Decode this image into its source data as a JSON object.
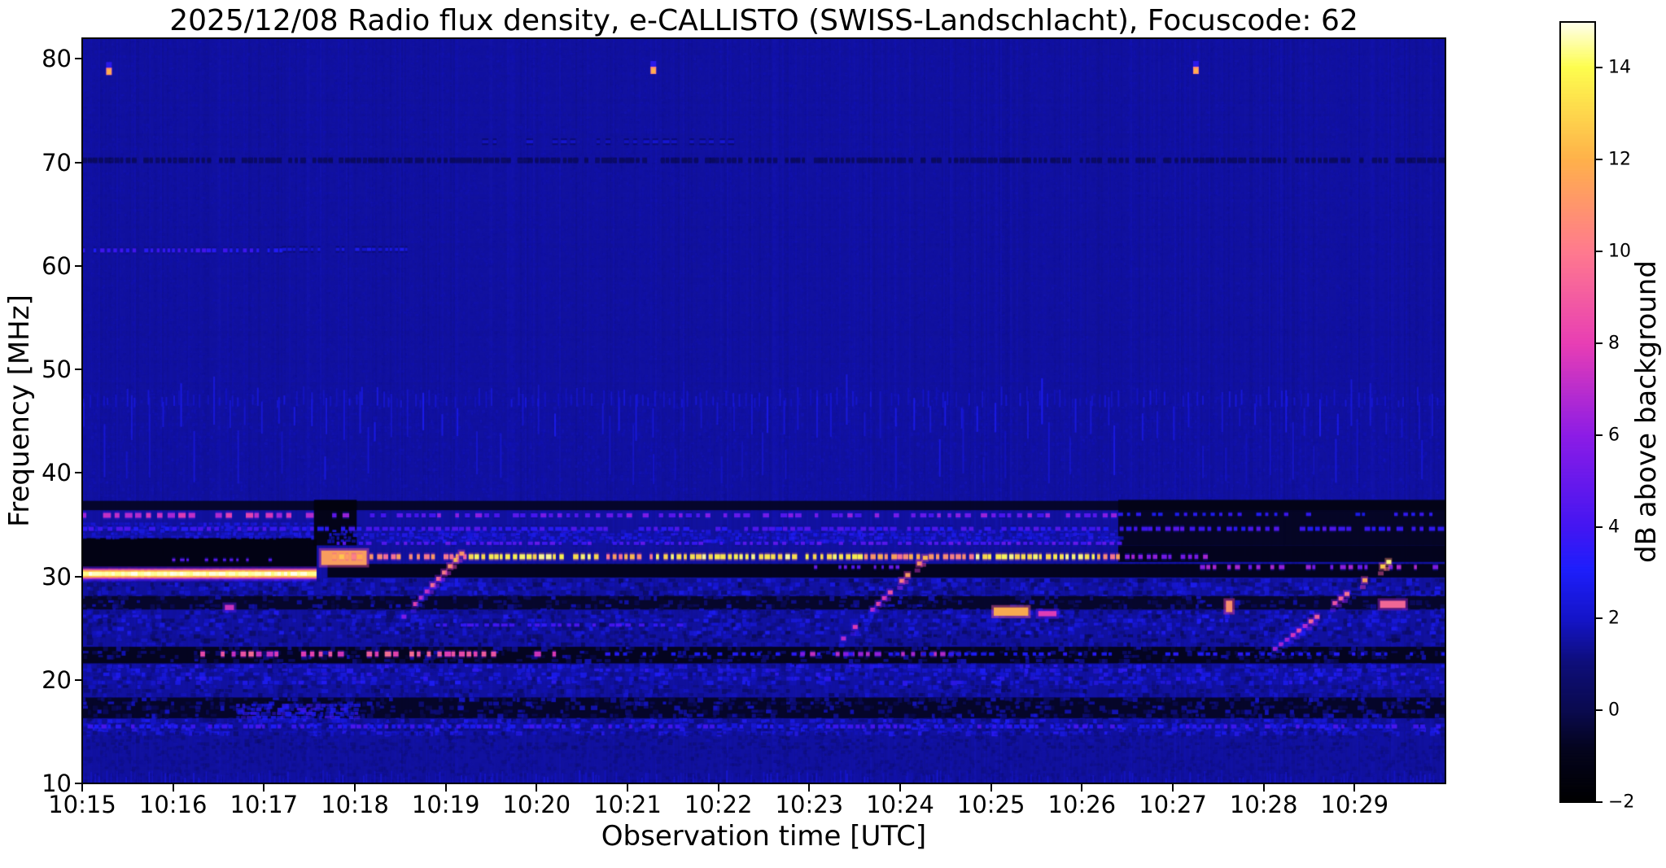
{
  "page": {
    "background": "#ffffff"
  },
  "chart_data": {
    "type": "heatmap",
    "title": "2025/12/08  Radio flux density, e-CALLISTO (SWISS-Landschlacht), Focuscode: 62",
    "date": "2025/12/08",
    "station": "SWISS-Landschlacht",
    "focuscode": "62",
    "xlabel": "Observation time [UTC]",
    "ylabel": "Frequency [MHz]",
    "x_tick_labels": [
      "10:15",
      "10:16",
      "10:17",
      "10:18",
      "10:19",
      "10:20",
      "10:21",
      "10:22",
      "10:23",
      "10:24",
      "10:25",
      "10:26",
      "10:27",
      "10:28",
      "10:29"
    ],
    "x_range": [
      "10:15",
      "10:30"
    ],
    "x_span_minutes": 15,
    "y_ticks": [
      10,
      20,
      30,
      40,
      50,
      60,
      70,
      80
    ],
    "ylim": [
      10,
      82
    ],
    "grid": false,
    "colorbar": {
      "label": "dB above background",
      "position": "right",
      "range": [
        -2,
        15
      ],
      "tick_values": [
        14,
        12,
        10,
        8,
        6,
        4,
        2,
        0,
        -2
      ],
      "tick_labels": [
        "14",
        "12",
        "10",
        "8",
        "6",
        "4",
        "2",
        "0",
        "−2"
      ]
    },
    "colormap_stops": [
      [
        0.0,
        "#000000"
      ],
      [
        0.07,
        "#04041e"
      ],
      [
        0.118,
        "#0a0a4e"
      ],
      [
        0.18,
        "#0e0e7a"
      ],
      [
        0.235,
        "#1414c8"
      ],
      [
        0.3,
        "#1e1efc"
      ],
      [
        0.353,
        "#4316f2"
      ],
      [
        0.47,
        "#8c1ce6"
      ],
      [
        0.588,
        "#e83eb4"
      ],
      [
        0.706,
        "#ff7a8e"
      ],
      [
        0.824,
        "#ffb14a"
      ],
      [
        0.941,
        "#fdfd4e"
      ],
      [
        1.0,
        "#ffffee"
      ]
    ],
    "background_db": 1.5,
    "features": [
      {
        "type": "speckle",
        "f0": 48,
        "f1": 82,
        "t0": 0,
        "t1": 15,
        "base": 1.5,
        "amp": 0.9,
        "density": 0.45,
        "cw": 3,
        "ch": 3,
        "alpha": 0.22
      },
      {
        "type": "speckle",
        "f0": 37.4,
        "f1": 48,
        "t0": 0,
        "t1": 15,
        "base": 1.6,
        "amp": 1.0,
        "density": 0.5,
        "cw": 3,
        "ch": 4,
        "alpha": 0.28
      },
      {
        "type": "picket",
        "f0": 43,
        "f1": 48.3,
        "t0": 0,
        "t1": 15,
        "spacing": 20,
        "len": 3.5,
        "db": 2.7,
        "density": 0.85,
        "w": 2
      },
      {
        "type": "picket",
        "f0": 38.5,
        "f1": 44.5,
        "t0": 0,
        "t1": 15,
        "spacing": 27,
        "len": 4.5,
        "db": 2.3,
        "density": 0.55,
        "w": 2
      },
      {
        "type": "picket",
        "f0": 46.3,
        "f1": 47.9,
        "t0": 0,
        "t1": 15,
        "spacing": 8,
        "len": 1.3,
        "db": 2.3,
        "density": 0.8,
        "w": 2
      },
      {
        "type": "dashline",
        "f": 70.2,
        "t0": 0,
        "t1": 15,
        "db": 0.5,
        "h": 3,
        "seg": 5,
        "gap": 2,
        "density": 0.9,
        "jitter": 0.4
      },
      {
        "type": "dashline",
        "f": 61.5,
        "t0": 0,
        "t1": 2.2,
        "db": 3.6,
        "h": 5,
        "seg": 4,
        "gap": 3,
        "density": 0.9,
        "jitter": 1
      },
      {
        "type": "dashline",
        "f": 61.6,
        "t0": 2.2,
        "t1": 3.6,
        "db": 2.5,
        "h": 4,
        "seg": 4,
        "gap": 3,
        "density": 0.8,
        "jitter": 0.8
      },
      {
        "type": "dashline",
        "f": 72.0,
        "t0": 4.4,
        "t1": 7.3,
        "db": 2.1,
        "h": 4,
        "seg": 6,
        "gap": 5,
        "density": 0.5,
        "jitter": 0.5
      },
      {
        "type": "speckle",
        "f0": 28.2,
        "f1": 29.8,
        "t0": 0,
        "t1": 15,
        "base": 0.9,
        "amp": 3.0,
        "density": 0.72,
        "cw": 6,
        "ch": 5,
        "alpha": 0.9
      },
      {
        "type": "darkband",
        "f0": 26.8,
        "f1": 28.1,
        "t0": 0,
        "t1": 15,
        "db": -0.9,
        "alpha": 0.88
      },
      {
        "type": "speckle",
        "f0": 26.8,
        "f1": 28.1,
        "t0": 0,
        "t1": 15,
        "base": 0.8,
        "amp": 2.2,
        "density": 0.3,
        "cw": 6,
        "ch": 5,
        "alpha": 0.85
      },
      {
        "type": "speckle",
        "f0": 24.5,
        "f1": 26.7,
        "t0": 0,
        "t1": 15,
        "base": 1.0,
        "amp": 3.2,
        "density": 0.68,
        "cw": 6,
        "ch": 5,
        "alpha": 0.9
      },
      {
        "type": "speckle",
        "f0": 23.3,
        "f1": 24.4,
        "t0": 0,
        "t1": 15,
        "base": 0.6,
        "amp": 2.6,
        "density": 0.55,
        "cw": 6,
        "ch": 5,
        "alpha": 0.85
      },
      {
        "type": "darkband",
        "f0": 21.6,
        "f1": 23.2,
        "t0": 0,
        "t1": 15,
        "db": -1.3,
        "alpha": 0.9
      },
      {
        "type": "speckle",
        "f0": 21.6,
        "f1": 23.2,
        "t0": 0,
        "t1": 15,
        "base": 0.6,
        "amp": 2.4,
        "density": 0.3,
        "cw": 6,
        "ch": 5,
        "alpha": 0.85
      },
      {
        "type": "speckle",
        "f0": 19.6,
        "f1": 21.5,
        "t0": 0,
        "t1": 15,
        "base": 1.5,
        "amp": 3.0,
        "density": 0.8,
        "cw": 6,
        "ch": 5,
        "alpha": 0.9
      },
      {
        "type": "speckle",
        "f0": 18.4,
        "f1": 19.5,
        "t0": 0,
        "t1": 15,
        "base": 0.8,
        "amp": 2.5,
        "density": 0.6,
        "cw": 6,
        "ch": 5,
        "alpha": 0.85
      },
      {
        "type": "darkband",
        "f0": 16.3,
        "f1": 18.3,
        "t0": 0,
        "t1": 15,
        "db": -1.0,
        "alpha": 0.88
      },
      {
        "type": "speckle",
        "f0": 16.3,
        "f1": 18.3,
        "t0": 0,
        "t1": 15,
        "base": 0.7,
        "amp": 2.8,
        "density": 0.4,
        "cw": 6,
        "ch": 5,
        "alpha": 0.85
      },
      {
        "type": "speckle",
        "f0": 16.4,
        "f1": 17.7,
        "t0": 1.7,
        "t1": 3.0,
        "base": 2.6,
        "amp": 2.0,
        "density": 0.85,
        "cw": 6,
        "ch": 5,
        "alpha": 0.9
      },
      {
        "type": "speckle",
        "f0": 15.0,
        "f1": 16.2,
        "t0": 0,
        "t1": 15,
        "base": 1.5,
        "amp": 2.8,
        "density": 0.8,
        "cw": 6,
        "ch": 5,
        "alpha": 0.9
      },
      {
        "type": "speckle",
        "f0": 13.6,
        "f1": 14.9,
        "t0": 0,
        "t1": 15,
        "base": 0.7,
        "amp": 1.6,
        "density": 0.5,
        "cw": 5,
        "ch": 4,
        "alpha": 0.6
      },
      {
        "type": "speckle",
        "f0": 10.0,
        "f1": 13.5,
        "t0": 0,
        "t1": 15,
        "base": 0.8,
        "amp": 1.1,
        "density": 0.45,
        "cw": 4,
        "ch": 4,
        "alpha": 0.45
      },
      {
        "type": "picket",
        "f0": 10.0,
        "f1": 10.9,
        "t0": 0,
        "t1": 15,
        "spacing": 5,
        "len": 0.9,
        "db": 1.9,
        "density": 0.85,
        "w": 2
      },
      {
        "type": "dashline",
        "f": 15.5,
        "t0": 0,
        "t1": 15,
        "db": 3.5,
        "h": 5,
        "seg": 5,
        "gap": 4,
        "density": 0.8,
        "jitter": 1.6
      },
      {
        "type": "dashline",
        "f": 25.3,
        "t0": 3.8,
        "t1": 6.7,
        "db": 4.0,
        "h": 4,
        "seg": 6,
        "gap": 4,
        "density": 0.7,
        "jitter": 1
      },
      {
        "type": "dashline",
        "f": 22.5,
        "t0": 1.3,
        "t1": 5.3,
        "db": 8.5,
        "h": 6,
        "seg": 6,
        "gap": 5,
        "density": 0.8,
        "jitter": 2.5
      },
      {
        "type": "dashline",
        "f": 22.5,
        "t0": 7.9,
        "t1": 9.7,
        "db": 6.5,
        "h": 5,
        "seg": 6,
        "gap": 5,
        "density": 0.7,
        "jitter": 2
      },
      {
        "type": "dashline",
        "f": 22.5,
        "t0": 5.3,
        "t1": 15,
        "db": 3.0,
        "h": 4,
        "seg": 5,
        "gap": 5,
        "density": 0.5,
        "jitter": 1
      },
      {
        "type": "darkband",
        "f0": 36.4,
        "f1": 37.3,
        "t0": 0,
        "t1": 15,
        "db": -1.1,
        "alpha": 0.85
      },
      {
        "type": "darkband",
        "f0": 30.7,
        "f1": 33.7,
        "t0": 0,
        "t1": 2.58,
        "db": -1.6,
        "alpha": 0.93
      },
      {
        "type": "speckle",
        "f0": 33.8,
        "f1": 35.2,
        "t0": 0,
        "t1": 2.55,
        "base": 2.2,
        "amp": 1.6,
        "density": 0.7,
        "cw": 5,
        "ch": 4,
        "alpha": 0.8
      },
      {
        "type": "darkband",
        "f0": 33.0,
        "f1": 37.4,
        "t0": 2.55,
        "t1": 3.02,
        "db": -1.5,
        "alpha": 0.92
      },
      {
        "type": "darkband",
        "f0": 29.9,
        "f1": 31.2,
        "t0": 2.7,
        "t1": 15,
        "db": -1.35,
        "alpha": 0.9
      },
      {
        "type": "darkband",
        "f0": 31.4,
        "f1": 33.0,
        "t0": 11.4,
        "t1": 15,
        "db": -1.4,
        "alpha": 0.9
      },
      {
        "type": "darkband",
        "f0": 33.0,
        "f1": 37.4,
        "t0": 11.4,
        "t1": 15,
        "db": -1.25,
        "alpha": 0.88
      },
      {
        "type": "speckle",
        "f0": 33.3,
        "f1": 34.5,
        "t0": 2.7,
        "t1": 11.4,
        "base": 2.3,
        "amp": 1.8,
        "density": 0.72,
        "cw": 5,
        "ch": 4,
        "alpha": 0.85
      },
      {
        "type": "dashline",
        "f": 35.9,
        "t0": 0,
        "t1": 2.55,
        "db": 7.3,
        "h": 6,
        "seg": 7,
        "gap": 5,
        "density": 0.85,
        "jitter": 2
      },
      {
        "type": "dashline",
        "f": 35.9,
        "t0": 2.75,
        "t1": 11.4,
        "db": 5.2,
        "h": 5,
        "seg": 6,
        "gap": 5,
        "density": 0.8,
        "jitter": 2.6
      },
      {
        "type": "dashline",
        "f": 36.0,
        "t0": 11.4,
        "t1": 15,
        "db": 3.3,
        "h": 4,
        "seg": 5,
        "gap": 5,
        "density": 0.7,
        "jitter": 1.2
      },
      {
        "type": "dashline",
        "f": 34.6,
        "t0": 0,
        "t1": 15,
        "db": 3.9,
        "h": 5,
        "seg": 6,
        "gap": 4,
        "density": 0.85,
        "jitter": 1.6
      },
      {
        "type": "dashline",
        "f": 33.2,
        "t0": 2.8,
        "t1": 11.4,
        "db": 4.4,
        "h": 4,
        "seg": 5,
        "gap": 4,
        "density": 0.8,
        "jitter": 1.6
      },
      {
        "type": "dashline",
        "f": 31.6,
        "t0": 0.75,
        "t1": 2.3,
        "db": 4.8,
        "h": 3,
        "seg": 4,
        "gap": 6,
        "density": 0.6,
        "jitter": 1
      },
      {
        "type": "glowline",
        "f": 30.25,
        "t0": 0,
        "t1": 2.56,
        "db": 14.7,
        "h": 5
      },
      {
        "type": "blob",
        "t": 2.88,
        "f": 31.8,
        "w": 0.5,
        "fh": 1.4,
        "db": 11.5
      },
      {
        "type": "dashline",
        "f": 31.9,
        "t0": 2.75,
        "t1": 11.4,
        "db": 11.2,
        "h": 6,
        "seg": 5,
        "gap": 3,
        "density": 0.92,
        "jitter": 3,
        "hot": [
          [
            4.2,
            5.7
          ],
          [
            6.3,
            8.6
          ],
          [
            9.8,
            11.15
          ]
        ],
        "hotdb": 13.8
      },
      {
        "type": "dashline",
        "f": 31.9,
        "t0": 11.4,
        "t1": 12.35,
        "db": 6.2,
        "h": 5,
        "seg": 5,
        "gap": 4,
        "density": 0.8,
        "jitter": 1.5
      },
      {
        "type": "dashline",
        "f": 30.9,
        "t0": 12.3,
        "t1": 14.95,
        "db": 6.0,
        "h": 5,
        "seg": 5,
        "gap": 5,
        "density": 0.75,
        "jitter": 2
      },
      {
        "type": "dashline",
        "f": 30.9,
        "t0": 7.9,
        "t1": 9.0,
        "db": 5.0,
        "h": 4,
        "seg": 4,
        "gap": 5,
        "density": 0.6,
        "jitter": 1.5
      },
      {
        "type": "diag",
        "t0": 3.45,
        "t1": 4.15,
        "f0": 25.5,
        "f1": 32.2,
        "db0": 6.5,
        "db1": 12
      },
      {
        "type": "diag",
        "t0": 8.35,
        "t1": 9.25,
        "f0": 24.0,
        "f1": 31.8,
        "db0": 6.5,
        "db1": 13
      },
      {
        "type": "diag",
        "t0": 13.1,
        "t1": 14.35,
        "f0": 23.0,
        "f1": 31.4,
        "db0": 7.0,
        "db1": 14
      },
      {
        "type": "dot",
        "t": 0.29,
        "f": 78.6,
        "db": 10.5
      },
      {
        "type": "dot",
        "t": 6.28,
        "f": 78.7,
        "db": 10.5
      },
      {
        "type": "dot",
        "t": 12.25,
        "f": 78.7,
        "db": 10.5
      },
      {
        "type": "blob",
        "t": 1.62,
        "f": 27.0,
        "w": 0.1,
        "fh": 0.5,
        "db": 7.5
      },
      {
        "type": "blob",
        "t": 10.22,
        "f": 26.6,
        "w": 0.38,
        "fh": 0.8,
        "db": 12
      },
      {
        "type": "blob",
        "t": 10.62,
        "f": 26.4,
        "w": 0.2,
        "fh": 0.5,
        "db": 8
      },
      {
        "type": "blob",
        "t": 12.62,
        "f": 27.1,
        "w": 0.07,
        "fh": 1.1,
        "db": 11
      },
      {
        "type": "blob",
        "t": 14.42,
        "f": 27.3,
        "w": 0.28,
        "fh": 0.7,
        "db": 9.5
      }
    ]
  }
}
